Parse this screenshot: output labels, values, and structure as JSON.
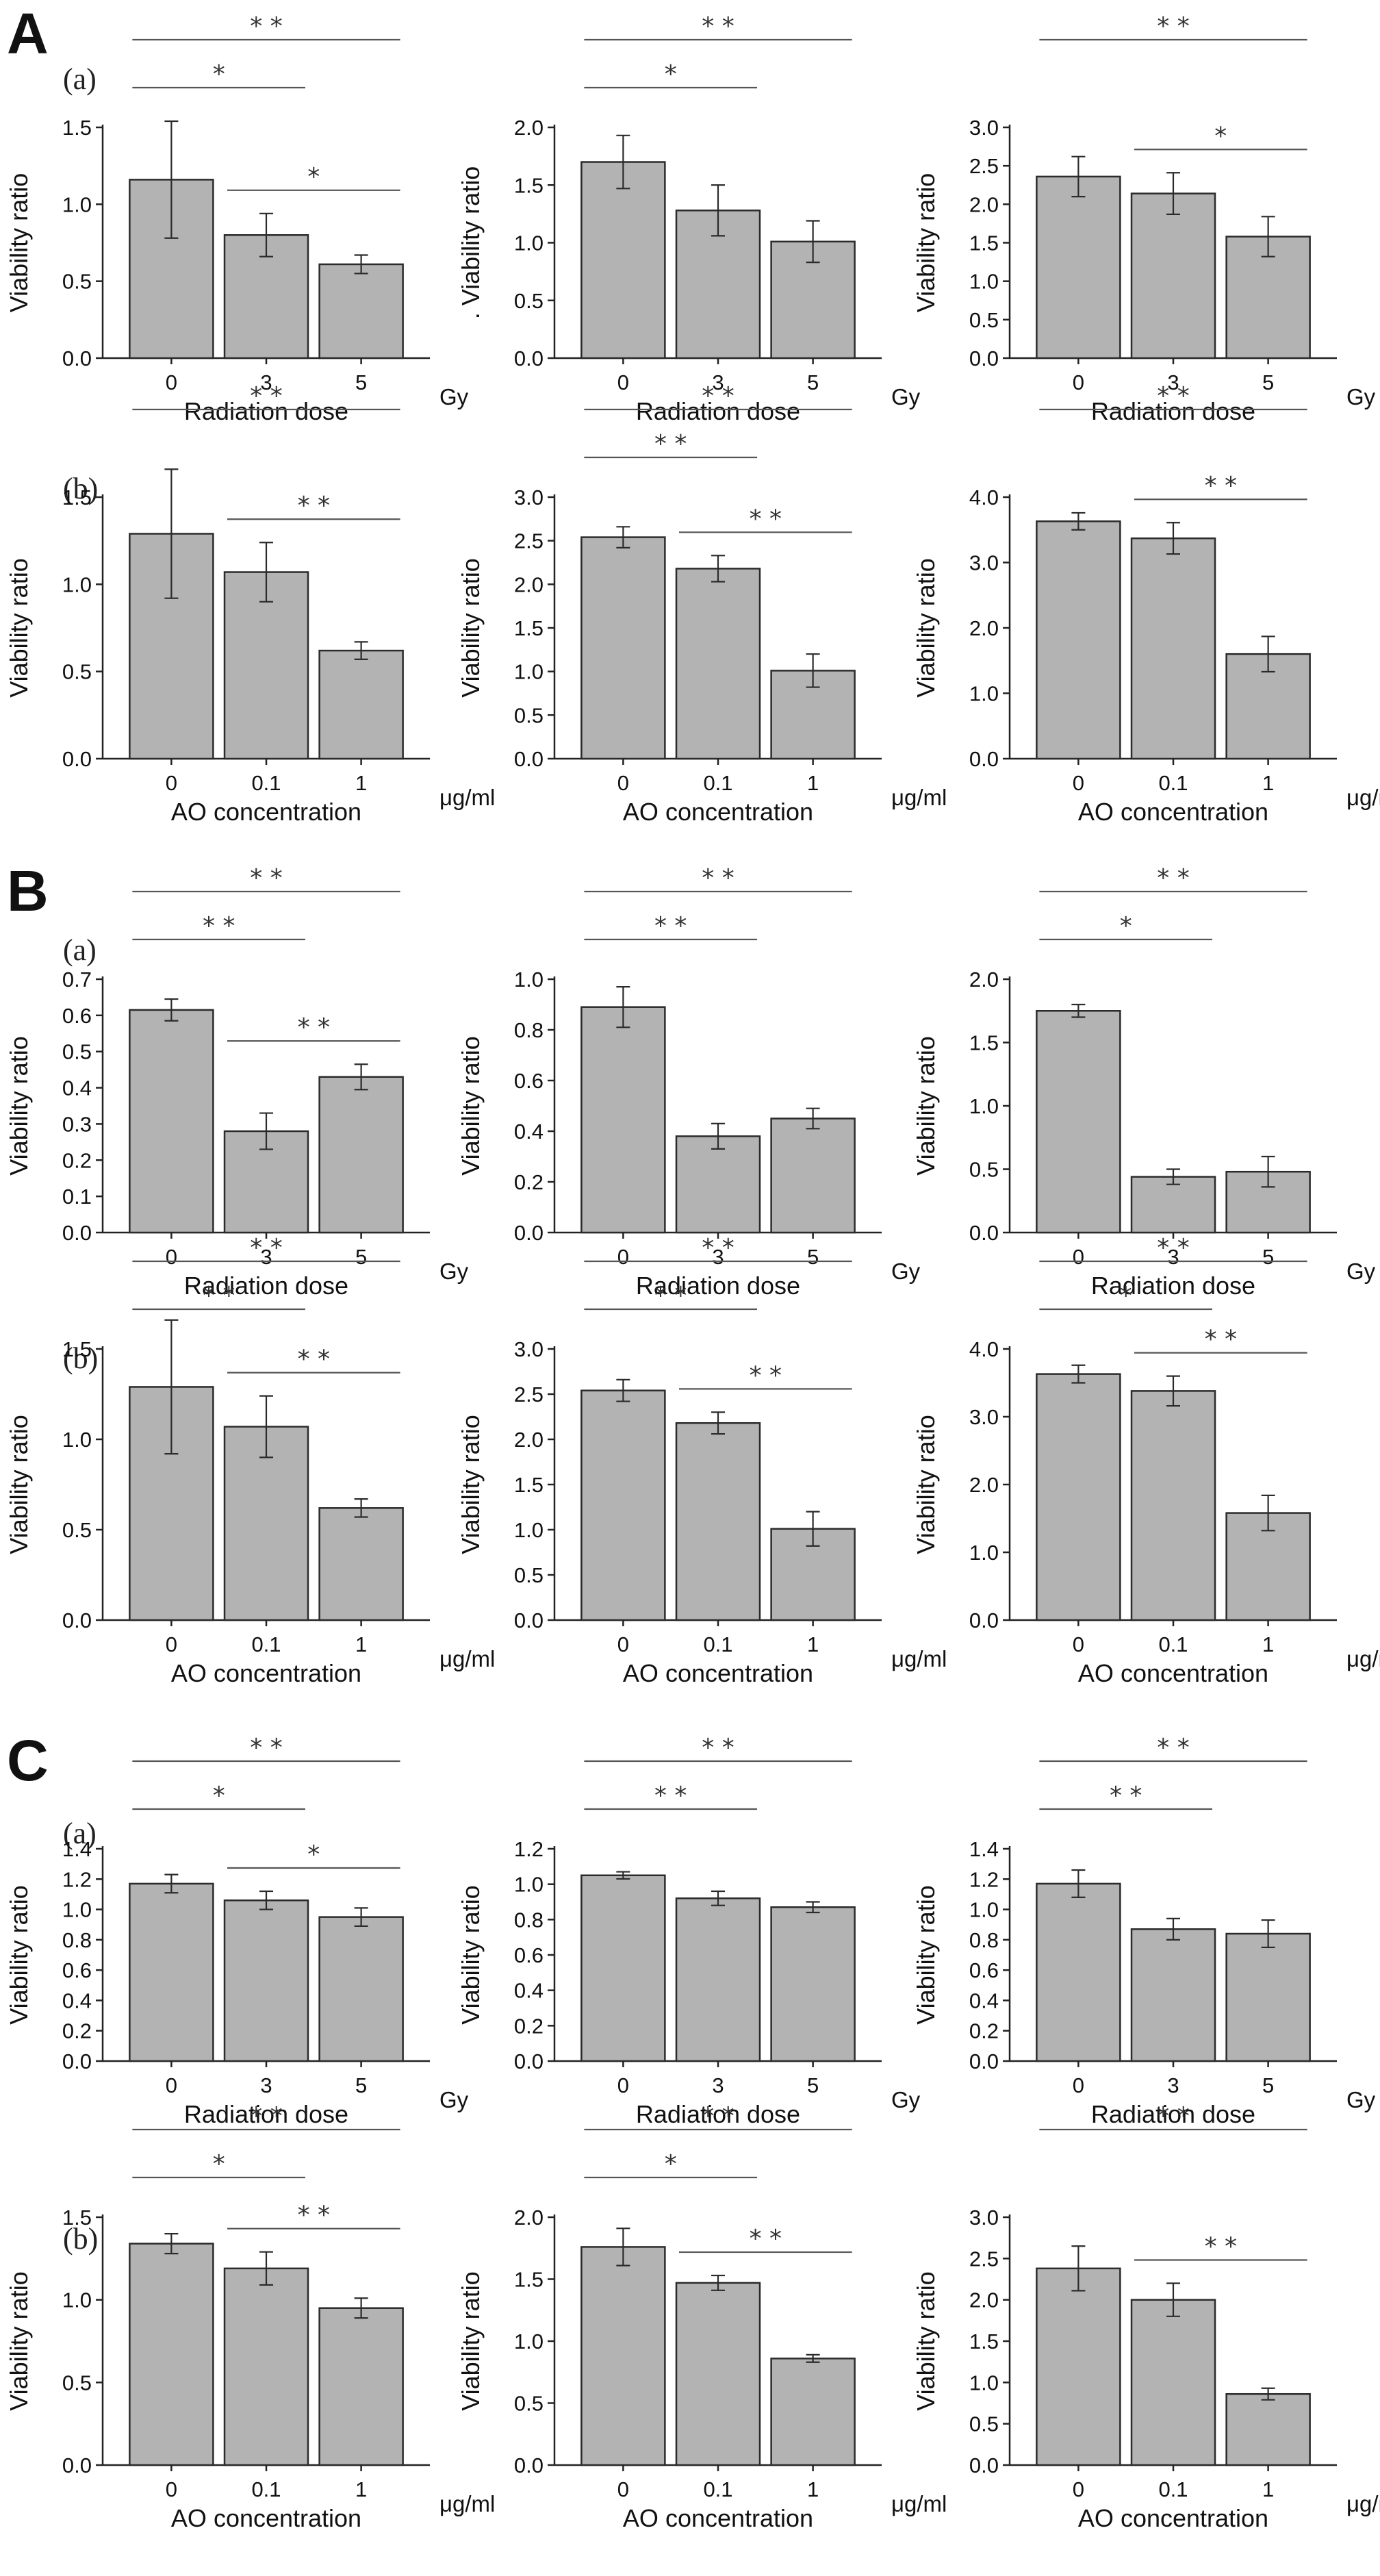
{
  "panel_letters": [
    "A",
    "B",
    "C"
  ],
  "sub_letters": [
    "(a)",
    "(b)"
  ],
  "chart_data": [
    {
      "type": "bar",
      "panel": "A",
      "row": "a",
      "col": 0,
      "categories": [
        "0",
        "3",
        "5"
      ],
      "values": [
        1.16,
        0.8,
        0.61
      ],
      "errors": [
        0.38,
        0.14,
        0.06
      ],
      "ylim": [
        0,
        1.5
      ],
      "yticks": [
        "0.0",
        "0.5",
        "1.0",
        "1.5"
      ],
      "ylabel": "Viability ratio",
      "xlabel": "Radiation dose",
      "unit": "Gy",
      "sig": [
        {
          "from": 0,
          "to": 1,
          "label": "*"
        },
        {
          "from": 0,
          "to": 2,
          "label": "* *"
        },
        {
          "from": 1,
          "to": 2,
          "label": "*"
        }
      ]
    },
    {
      "type": "bar",
      "panel": "A",
      "row": "a",
      "col": 1,
      "categories": [
        "0",
        "3",
        "5"
      ],
      "values": [
        1.7,
        1.28,
        1.01
      ],
      "errors": [
        0.23,
        0.22,
        0.18
      ],
      "ylim": [
        0,
        2.0
      ],
      "yticks": [
        "0.0",
        "0.5",
        "1.0",
        "1.5",
        "2.0"
      ],
      "ylabel": ". Viability ratio",
      "xlabel": "Radiation dose",
      "unit": "Gy",
      "sig": [
        {
          "from": 0,
          "to": 1,
          "label": "*"
        },
        {
          "from": 0,
          "to": 2,
          "label": "* *"
        }
      ]
    },
    {
      "type": "bar",
      "panel": "A",
      "row": "a",
      "col": 2,
      "categories": [
        "0",
        "3",
        "5"
      ],
      "values": [
        2.36,
        2.14,
        1.58
      ],
      "errors": [
        0.26,
        0.27,
        0.26
      ],
      "ylim": [
        0,
        3.0
      ],
      "yticks": [
        "0.0",
        "0.5",
        "1.0",
        "1.5",
        "2.0",
        "2.5",
        "3.0"
      ],
      "ylabel": "Viability ratio",
      "xlabel": "Radiation dose",
      "unit": "Gy",
      "sig": [
        {
          "from": 0,
          "to": 2,
          "label": "* *"
        },
        {
          "from": 1,
          "to": 2,
          "label": "*"
        }
      ]
    },
    {
      "type": "bar",
      "panel": "A",
      "row": "b",
      "col": 0,
      "categories": [
        "0",
        "0.1",
        "1"
      ],
      "values": [
        1.29,
        1.07,
        0.62
      ],
      "errors": [
        0.37,
        0.17,
        0.05
      ],
      "ylim": [
        0,
        1.5
      ],
      "yticks": [
        "0.0",
        "0.5",
        "1.0",
        "1.5"
      ],
      "ylabel": "Viability ratio",
      "xlabel": "AO concentration",
      "unit": "μg/ml",
      "sig": [
        {
          "from": 0,
          "to": 2,
          "label": "* *"
        },
        {
          "from": 1,
          "to": 2,
          "label": "* *"
        }
      ]
    },
    {
      "type": "bar",
      "panel": "A",
      "row": "b",
      "col": 1,
      "categories": [
        "0",
        "0.1",
        "1"
      ],
      "values": [
        2.54,
        2.18,
        1.01
      ],
      "errors": [
        0.12,
        0.15,
        0.19
      ],
      "ylim": [
        0,
        3.0
      ],
      "yticks": [
        "0.0",
        "0.5",
        "1.0",
        "1.5",
        "2.0",
        "2.5",
        "3.0"
      ],
      "ylabel": "Viability ratio",
      "xlabel": "AO concentration",
      "unit": "μg/ml",
      "sig": [
        {
          "from": 0,
          "to": 1,
          "label": "* *"
        },
        {
          "from": 0,
          "to": 2,
          "label": "* *"
        },
        {
          "from": 1,
          "to": 2,
          "label": "* *"
        }
      ]
    },
    {
      "type": "bar",
      "panel": "A",
      "row": "b",
      "col": 2,
      "categories": [
        "0",
        "0.1",
        "1"
      ],
      "values": [
        3.63,
        3.37,
        1.6
      ],
      "errors": [
        0.13,
        0.24,
        0.27
      ],
      "ylim": [
        0,
        4.0
      ],
      "yticks": [
        "0.0",
        "1.0",
        "2.0",
        "3.0",
        "4.0"
      ],
      "ylabel": "Viability ratio",
      "xlabel": "AO concentration",
      "unit": "μg/ml",
      "sig": [
        {
          "from": 0,
          "to": 2,
          "label": "* *"
        },
        {
          "from": 1,
          "to": 2,
          "label": "* *"
        }
      ]
    },
    {
      "type": "bar",
      "panel": "B",
      "row": "a",
      "col": 0,
      "categories": [
        "0",
        "3",
        "5"
      ],
      "values": [
        0.615,
        0.28,
        0.43
      ],
      "errors": [
        0.03,
        0.05,
        0.035
      ],
      "ylim": [
        0,
        0.7
      ],
      "yticks": [
        "0.0",
        "0.1",
        "0.2",
        "0.3",
        "0.4",
        "0.5",
        "0.6",
        "0.7"
      ],
      "ylabel": "Viability ratio",
      "xlabel": "Radiation dose",
      "unit": "Gy",
      "sig": [
        {
          "from": 0,
          "to": 1,
          "label": "* *"
        },
        {
          "from": 0,
          "to": 2,
          "label": "* *"
        },
        {
          "from": 1,
          "to": 2,
          "label": "* *"
        }
      ]
    },
    {
      "type": "bar",
      "panel": "B",
      "row": "a",
      "col": 1,
      "categories": [
        "0",
        "3",
        "5"
      ],
      "values": [
        0.89,
        0.38,
        0.45
      ],
      "errors": [
        0.08,
        0.05,
        0.04
      ],
      "ylim": [
        0,
        1.0
      ],
      "yticks": [
        "0.0",
        "0.2",
        "0.4",
        "0.6",
        "0.8",
        "1.0"
      ],
      "ylabel": "Viability ratio",
      "xlabel": "Radiation dose",
      "unit": "Gy",
      "sig": [
        {
          "from": 0,
          "to": 1,
          "label": "* *"
        },
        {
          "from": 0,
          "to": 2,
          "label": "* *"
        }
      ]
    },
    {
      "type": "bar",
      "panel": "B",
      "row": "a",
      "col": 2,
      "categories": [
        "0",
        "3",
        "5"
      ],
      "values": [
        1.75,
        0.44,
        0.48
      ],
      "errors": [
        0.05,
        0.06,
        0.12
      ],
      "ylim": [
        0,
        2.0
      ],
      "yticks": [
        "0.0",
        "0.5",
        "1.0",
        "1.5",
        "2.0"
      ],
      "ylabel": "Viability ratio",
      "xlabel": "Radiation dose",
      "unit": "Gy",
      "sig": [
        {
          "from": 0,
          "to": 1,
          "label": "*"
        },
        {
          "from": 0,
          "to": 2,
          "label": "* *"
        }
      ]
    },
    {
      "type": "bar",
      "panel": "B",
      "row": "b",
      "col": 0,
      "categories": [
        "0",
        "0.1",
        "1"
      ],
      "values": [
        1.29,
        1.07,
        0.62
      ],
      "errors": [
        0.37,
        0.17,
        0.05
      ],
      "ylim": [
        0,
        1.5
      ],
      "yticks": [
        "0.0",
        "0.5",
        "1.0",
        "1.5"
      ],
      "ylabel": "Viability ratio",
      "xlabel": "AO concentration",
      "unit": "μg/ml",
      "sig": [
        {
          "from": 0,
          "to": 1,
          "label": "* *"
        },
        {
          "from": 0,
          "to": 2,
          "label": "* *"
        },
        {
          "from": 1,
          "to": 2,
          "label": "* *"
        }
      ]
    },
    {
      "type": "bar",
      "panel": "B",
      "row": "b",
      "col": 1,
      "categories": [
        "0",
        "0.1",
        "1"
      ],
      "values": [
        2.54,
        2.18,
        1.01
      ],
      "errors": [
        0.12,
        0.12,
        0.19
      ],
      "ylim": [
        0,
        3.0
      ],
      "yticks": [
        "0.0",
        "0.5",
        "1.0",
        "1.5",
        "2.0",
        "2.5",
        "3.0"
      ],
      "ylabel": "Viability ratio",
      "xlabel": "AO concentration",
      "unit": "μg/ml",
      "sig": [
        {
          "from": 0,
          "to": 1,
          "label": "* *"
        },
        {
          "from": 0,
          "to": 2,
          "label": "* *"
        },
        {
          "from": 1,
          "to": 2,
          "label": "* *"
        }
      ]
    },
    {
      "type": "bar",
      "panel": "B",
      "row": "b",
      "col": 2,
      "categories": [
        "0",
        "0.1",
        "1"
      ],
      "values": [
        3.63,
        3.38,
        1.58
      ],
      "errors": [
        0.13,
        0.22,
        0.26
      ],
      "ylim": [
        0,
        4.0
      ],
      "yticks": [
        "0.0",
        "1.0",
        "2.0",
        "3.0",
        "4.0"
      ],
      "ylabel": "Viability ratio",
      "xlabel": "AO concentration",
      "unit": "μg/ml",
      "sig": [
        {
          "from": 0,
          "to": 1,
          "label": "*"
        },
        {
          "from": 0,
          "to": 2,
          "label": "* *"
        },
        {
          "from": 1,
          "to": 2,
          "label": "* *"
        }
      ]
    },
    {
      "type": "bar",
      "panel": "C",
      "row": "a",
      "col": 0,
      "categories": [
        "0",
        "3",
        "5"
      ],
      "values": [
        1.17,
        1.06,
        0.95
      ],
      "errors": [
        0.06,
        0.06,
        0.06
      ],
      "ylim": [
        0,
        1.4
      ],
      "yticks": [
        "0.0",
        "0.2",
        "0.4",
        "0.6",
        "0.8",
        "1.0",
        "1.2",
        "1.4"
      ],
      "ylabel": "Viability ratio",
      "xlabel": "Radiation dose",
      "unit": "Gy",
      "sig": [
        {
          "from": 0,
          "to": 1,
          "label": "*"
        },
        {
          "from": 0,
          "to": 2,
          "label": "* *"
        },
        {
          "from": 1,
          "to": 2,
          "label": "*"
        }
      ]
    },
    {
      "type": "bar",
      "panel": "C",
      "row": "a",
      "col": 1,
      "categories": [
        "0",
        "3",
        "5"
      ],
      "values": [
        1.05,
        0.92,
        0.87
      ],
      "errors": [
        0.02,
        0.04,
        0.03
      ],
      "ylim": [
        0,
        1.2
      ],
      "yticks": [
        "0.0",
        "0.2",
        "0.4",
        "0.6",
        "0.8",
        "1.0",
        "1.2"
      ],
      "ylabel": "Viability ratio",
      "xlabel": "Radiation dose",
      "unit": "Gy",
      "sig": [
        {
          "from": 0,
          "to": 1,
          "label": "* *"
        },
        {
          "from": 0,
          "to": 2,
          "label": "* *"
        }
      ]
    },
    {
      "type": "bar",
      "panel": "C",
      "row": "a",
      "col": 2,
      "categories": [
        "0",
        "3",
        "5"
      ],
      "values": [
        1.17,
        0.87,
        0.84
      ],
      "errors": [
        0.09,
        0.07,
        0.09
      ],
      "ylim": [
        0,
        1.4
      ],
      "yticks": [
        "0.0",
        "0.2",
        "0.4",
        "0.6",
        "0.8",
        "1.0",
        "1.2",
        "1.4"
      ],
      "ylabel": "Viability ratio",
      "xlabel": "Radiation dose",
      "unit": "Gy",
      "sig": [
        {
          "from": 0,
          "to": 1,
          "label": "* *"
        },
        {
          "from": 0,
          "to": 2,
          "label": "* *"
        }
      ]
    },
    {
      "type": "bar",
      "panel": "C",
      "row": "b",
      "col": 0,
      "categories": [
        "0",
        "0.1",
        "1"
      ],
      "values": [
        1.34,
        1.19,
        0.95
      ],
      "errors": [
        0.06,
        0.1,
        0.06
      ],
      "ylim": [
        0,
        1.5
      ],
      "yticks": [
        "0.0",
        "0.5",
        "1.0",
        "1.5"
      ],
      "ylabel": "Viability ratio",
      "xlabel": "AO concentration",
      "unit": "μg/ml",
      "sig": [
        {
          "from": 0,
          "to": 1,
          "label": "*"
        },
        {
          "from": 0,
          "to": 2,
          "label": "* *"
        },
        {
          "from": 1,
          "to": 2,
          "label": "* *"
        }
      ]
    },
    {
      "type": "bar",
      "panel": "C",
      "row": "b",
      "col": 1,
      "categories": [
        "0",
        "0.1",
        "1"
      ],
      "values": [
        1.76,
        1.47,
        0.86
      ],
      "errors": [
        0.15,
        0.06,
        0.03
      ],
      "ylim": [
        0,
        2.0
      ],
      "yticks": [
        "0.0",
        "0.5",
        "1.0",
        "1.5",
        "2.0"
      ],
      "ylabel": "Viability ratio",
      "xlabel": "AO concentration",
      "unit": "μg/ml",
      "sig": [
        {
          "from": 0,
          "to": 1,
          "label": "*"
        },
        {
          "from": 0,
          "to": 2,
          "label": "* *"
        },
        {
          "from": 1,
          "to": 2,
          "label": "* *"
        }
      ]
    },
    {
      "type": "bar",
      "panel": "C",
      "row": "b",
      "col": 2,
      "categories": [
        "0",
        "0.1",
        "1"
      ],
      "values": [
        2.38,
        2.0,
        0.86
      ],
      "errors": [
        0.27,
        0.2,
        0.07
      ],
      "ylim": [
        0,
        3.0
      ],
      "yticks": [
        "0.0",
        "0.5",
        "1.0",
        "1.5",
        "2.0",
        "2.5",
        "3.0"
      ],
      "ylabel": "Viability ratio",
      "xlabel": "AO concentration",
      "unit": "μg/ml",
      "sig": [
        {
          "from": 0,
          "to": 2,
          "label": "* *"
        },
        {
          "from": 1,
          "to": 2,
          "label": "* *"
        }
      ]
    }
  ],
  "colors": {
    "bar_fill": "#b3b3b3",
    "bar_stroke": "#2b2b2b",
    "axis": "#222222",
    "sig_line": "#555555"
  }
}
